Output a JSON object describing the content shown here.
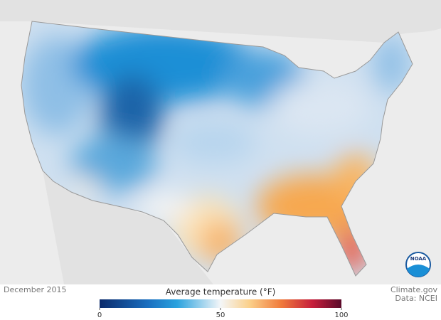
{
  "footer": {
    "date": "December 2015",
    "credit": "Climate.gov",
    "source": "Data: NCEI"
  },
  "legend": {
    "title": "Average temperature (°F)",
    "range": [
      0,
      100
    ],
    "ticks": [
      0,
      50,
      100
    ]
  },
  "logo": "NOAA"
}
